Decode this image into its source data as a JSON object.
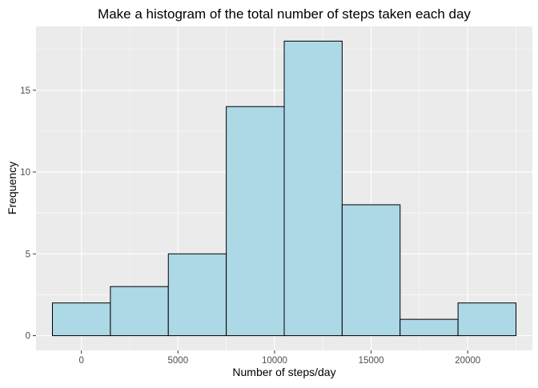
{
  "chart_data": {
    "type": "bar",
    "title": "Make a histogram of the total number of steps taken each day",
    "xlabel": "Number of steps/day",
    "ylabel": "Frequency",
    "xlim": [
      -2350,
      23350
    ],
    "ylim": [
      -0.9,
      18.9
    ],
    "grid": true,
    "legend": "none",
    "bin_width": 3000,
    "bins": [
      {
        "x_start": -1500,
        "x_end": 1500,
        "count": 2
      },
      {
        "x_start": 1500,
        "x_end": 4500,
        "count": 3
      },
      {
        "x_start": 4500,
        "x_end": 7500,
        "count": 5
      },
      {
        "x_start": 7500,
        "x_end": 10500,
        "count": 14
      },
      {
        "x_start": 10500,
        "x_end": 13500,
        "count": 18
      },
      {
        "x_start": 13500,
        "x_end": 16500,
        "count": 8
      },
      {
        "x_start": 16500,
        "x_end": 19500,
        "count": 1
      },
      {
        "x_start": 19500,
        "x_end": 22500,
        "count": 2
      }
    ],
    "x_ticks": [
      0,
      5000,
      10000,
      15000,
      20000
    ],
    "x_tick_labels": [
      "0",
      "5000",
      "10000",
      "15000",
      "20000"
    ],
    "y_ticks": [
      0,
      5,
      10,
      15
    ],
    "y_tick_labels": [
      "0",
      "5",
      "10",
      "15"
    ]
  },
  "style": {
    "panel_background": "#ebebeb",
    "grid_major": "#ffffff",
    "bar_fill": "#add8e6",
    "bar_stroke": "#000000",
    "tick_color": "#333333"
  }
}
